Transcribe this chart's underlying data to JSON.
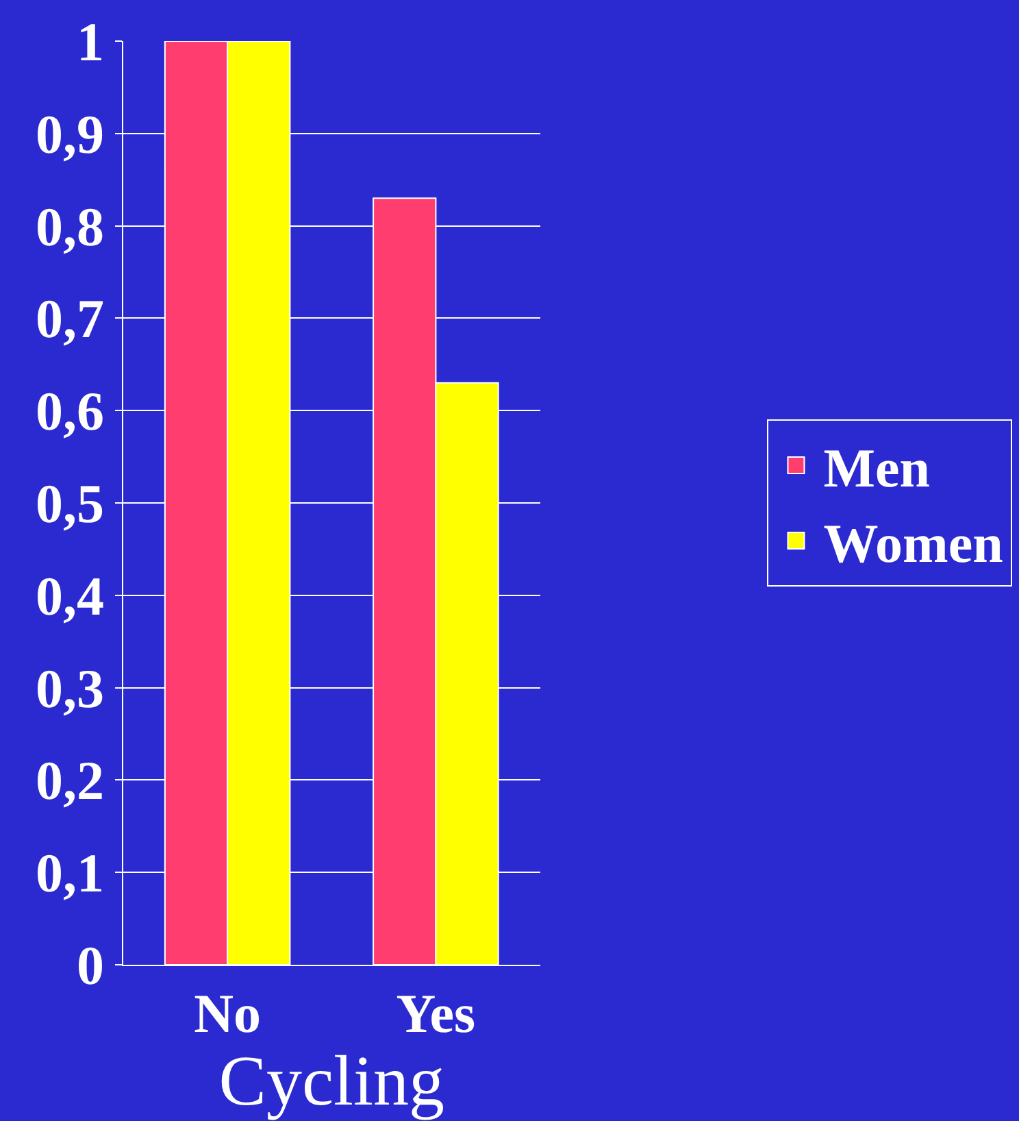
{
  "chart_data": {
    "type": "bar",
    "xlabel": "Cycling",
    "categories": [
      "No",
      "Yes"
    ],
    "series": [
      {
        "name": "Men",
        "color": "#ff3d6e",
        "values": [
          1,
          0.83
        ]
      },
      {
        "name": "Women",
        "color": "#ffff00",
        "values": [
          1,
          0.63
        ]
      }
    ],
    "ylim": [
      0,
      1
    ],
    "yticks": [
      0,
      {
        "value": 0.1,
        "label": "0,1"
      },
      {
        "value": 0.2,
        "label": "0,2"
      },
      {
        "value": 0.3,
        "label": "0,3"
      },
      {
        "value": 0.4,
        "label": "0,4"
      },
      {
        "value": 0.5,
        "label": "0,5"
      },
      {
        "value": 0.6,
        "label": "0,6"
      },
      {
        "value": 0.7,
        "label": "0,7"
      },
      {
        "value": 0.8,
        "label": "0,8"
      },
      {
        "value": 0.9,
        "label": "0,9"
      },
      1
    ],
    "grid": "y",
    "legend": "right"
  }
}
